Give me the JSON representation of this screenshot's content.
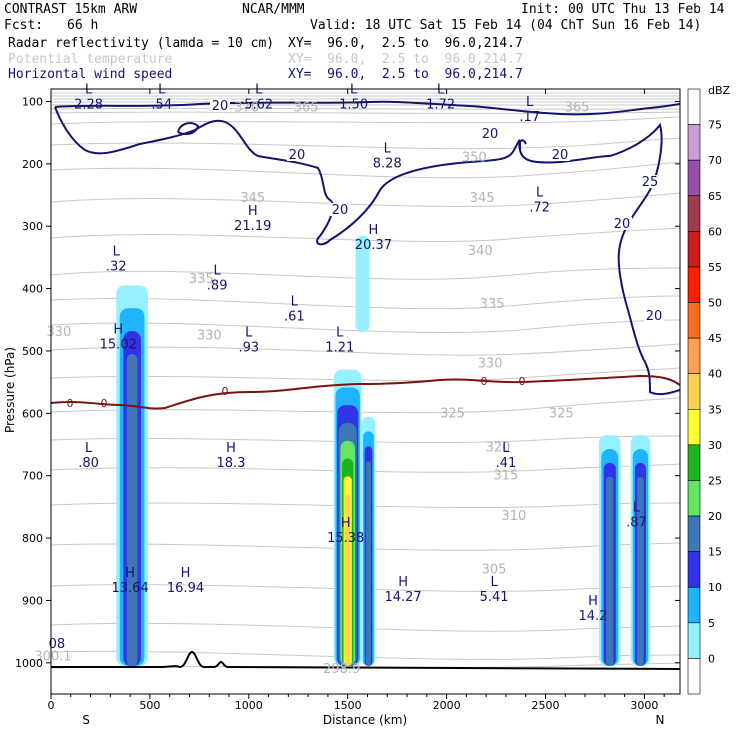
{
  "header": {
    "model": "CONTRAST 15km ARW",
    "fcst_label": "Fcst:",
    "fcst_value": "66 h",
    "center": "NCAR/MMM",
    "init": "Init: 00 UTC Thu 13 Feb 14",
    "valid": "Valid: 18 UTC Sat 15 Feb 14 (04 ChT Sun 16 Feb 14)",
    "fields": [
      {
        "name": "Radar reflectivity (lamda = 10 cm)",
        "xy": "XY=  96.0,  2.5 to  96.0,214.7",
        "color": "#000000"
      },
      {
        "name": "Potential temperature",
        "xy": "XY=  96.0,  2.5 to  96.0,214.7",
        "color": "#c8c8c8"
      },
      {
        "name": "Horizontal wind speed",
        "xy": "XY=  96.0,  2.5 to  96.0,214.7",
        "color": "#14146e"
      }
    ]
  },
  "chart_data": {
    "type": "cross-section",
    "xlabel": "Distance (km)",
    "ylabel": "Pressure (hPa)",
    "xlim": [
      0,
      3180
    ],
    "ylim": [
      1050,
      80
    ],
    "x_ticks": [
      0,
      500,
      1000,
      1500,
      2000,
      2500,
      3000
    ],
    "y_ticks": [
      100,
      200,
      300,
      400,
      500,
      600,
      700,
      800,
      900,
      1000
    ],
    "x_end_labels": {
      "left": "S",
      "right": "N"
    },
    "colorbar": {
      "unit": "dBZ",
      "levels": [
        75,
        70,
        65,
        60,
        55,
        50,
        45,
        40,
        35,
        30,
        25,
        20,
        15,
        10,
        5,
        0
      ],
      "colors": [
        "#ffffff",
        "#c8a0d2",
        "#9650aa",
        "#a03c50",
        "#c81e1e",
        "#ff1e00",
        "#ff6e1e",
        "#ffa050",
        "#ffd250",
        "#ffff32",
        "#1eb41e",
        "#64e664",
        "#3c78b4",
        "#3232e6",
        "#1eb4ff",
        "#96f0ff",
        "#ffffff"
      ]
    },
    "wind_speed_contours": [
      20,
      25
    ],
    "wind_extrema": [
      {
        "type": "L",
        "value": "2.28",
        "x": 190,
        "p": 100
      },
      {
        "type": "L",
        "value": ".54",
        "x": 560,
        "p": 100
      },
      {
        "type": "L",
        "value": "5.62",
        "x": 1050,
        "p": 100
      },
      {
        "type": "L",
        "value": "1.50",
        "x": 1530,
        "p": 100
      },
      {
        "type": "L",
        "value": "1.72",
        "x": 1970,
        "p": 100
      },
      {
        "type": "L",
        "value": ".17",
        "x": 2420,
        "p": 120
      },
      {
        "type": "L",
        "value": "8.28",
        "x": 1700,
        "p": 195
      },
      {
        "type": "L",
        "value": ".72",
        "x": 2470,
        "p": 265
      },
      {
        "type": "H",
        "value": "21.19",
        "x": 1020,
        "p": 295
      },
      {
        "type": "H",
        "value": "20.37",
        "x": 1630,
        "p": 325
      },
      {
        "type": "L",
        "value": ".32",
        "x": 330,
        "p": 360
      },
      {
        "type": "L",
        "value": ".89",
        "x": 840,
        "p": 390
      },
      {
        "type": "L",
        "value": ".61",
        "x": 1230,
        "p": 440
      },
      {
        "type": "H",
        "value": "15.02",
        "x": 340,
        "p": 485
      },
      {
        "type": "L",
        "value": ".93",
        "x": 1000,
        "p": 490
      },
      {
        "type": "L",
        "value": "1.21",
        "x": 1460,
        "p": 490
      },
      {
        "type": "L",
        "value": ".80",
        "x": 190,
        "p": 675
      },
      {
        "type": "H",
        "value": "18.3",
        "x": 910,
        "p": 675
      },
      {
        "type": "L",
        "value": ".41",
        "x": 2300,
        "p": 675
      },
      {
        "type": "L",
        "value": ".87",
        "x": 2960,
        "p": 770
      },
      {
        "type": "H",
        "value": "15.38",
        "x": 1490,
        "p": 795
      },
      {
        "type": "H",
        "value": "13.64",
        "x": 400,
        "p": 875
      },
      {
        "type": "H",
        "value": "16.94",
        "x": 680,
        "p": 875
      },
      {
        "type": "H",
        "value": "14.27",
        "x": 1780,
        "p": 890
      },
      {
        "type": "L",
        "value": "5.41",
        "x": 2240,
        "p": 890
      },
      {
        "type": "H",
        "value": "14.2",
        "x": 2740,
        "p": 920
      },
      {
        "type": "",
        "value": "08",
        "x": 30,
        "p": 965
      }
    ],
    "theta_labels": [
      {
        "value": "370",
        "x": 990,
        "p": 110
      },
      {
        "value": "365",
        "x": 1290,
        "p": 110
      },
      {
        "value": "365",
        "x": 2660,
        "p": 110
      },
      {
        "value": "350",
        "x": 2140,
        "p": 190
      },
      {
        "value": "345",
        "x": 1020,
        "p": 255
      },
      {
        "value": "345",
        "x": 2180,
        "p": 255
      },
      {
        "value": "340",
        "x": 2170,
        "p": 340
      },
      {
        "value": "335",
        "x": 760,
        "p": 385
      },
      {
        "value": "335",
        "x": 2230,
        "p": 425
      },
      {
        "value": "330",
        "x": 40,
        "p": 470
      },
      {
        "value": "330",
        "x": 800,
        "p": 475
      },
      {
        "value": "330",
        "x": 2220,
        "p": 520
      },
      {
        "value": "325",
        "x": 2030,
        "p": 600
      },
      {
        "value": "325",
        "x": 2580,
        "p": 600
      },
      {
        "value": "320",
        "x": 2260,
        "p": 655
      },
      {
        "value": "315",
        "x": 2300,
        "p": 700
      },
      {
        "value": "310",
        "x": 2340,
        "p": 765
      },
      {
        "value": "305",
        "x": 2240,
        "p": 850
      },
      {
        "value": "300.1",
        "x": 10,
        "p": 990
      },
      {
        "value": "298.9",
        "x": 1470,
        "p": 1010
      }
    ],
    "radar_cells": [
      {
        "x_min": 330,
        "x_max": 490,
        "p_top": 395,
        "p_bottom": 1005,
        "max_dbz": 20
      },
      {
        "x_min": 1540,
        "x_max": 1610,
        "p_top": 315,
        "p_bottom": 470,
        "max_dbz": 5
      },
      {
        "x_min": 1430,
        "x_max": 1570,
        "p_top": 530,
        "p_bottom": 1005,
        "max_dbz": 40
      },
      {
        "x_min": 1570,
        "x_max": 1640,
        "p_top": 605,
        "p_bottom": 1005,
        "max_dbz": 20
      },
      {
        "x_min": 2770,
        "x_max": 2880,
        "p_top": 635,
        "p_bottom": 1005,
        "max_dbz": 20
      },
      {
        "x_min": 2930,
        "x_max": 3030,
        "p_top": 635,
        "p_bottom": 1005,
        "max_dbz": 20
      }
    ],
    "freezing_level": {
      "label": "0",
      "p_approx": 560
    }
  }
}
